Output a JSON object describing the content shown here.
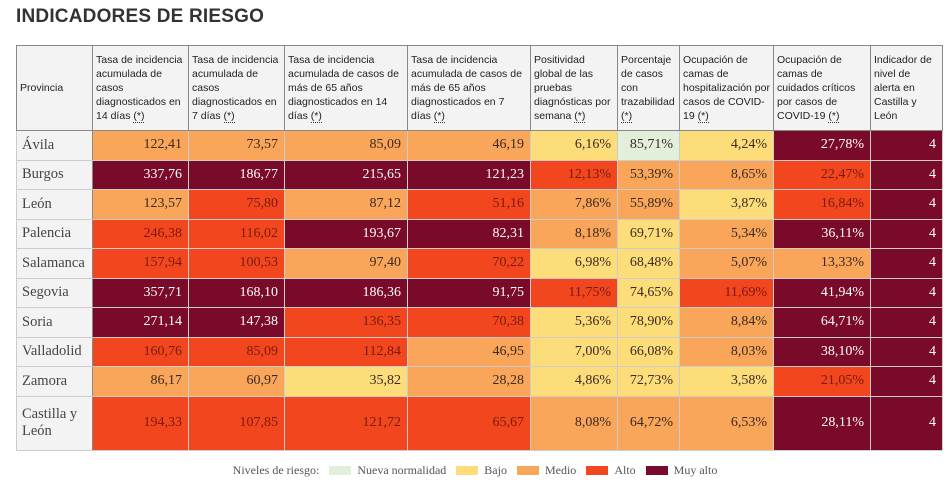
{
  "title": "INDICADORES DE RIESGO",
  "colors": {
    "N": "#e2efda",
    "B": "#fddd7a",
    "M": "#f9a65a",
    "A": "#f2461f",
    "X": "#7a0a2a"
  },
  "headers": [
    {
      "label": "Provincia",
      "note": ""
    },
    {
      "label": "Tasa de incidencia acumulada de casos diagnosticados en 14 días ",
      "note": "(*)"
    },
    {
      "label": "Tasa de incidencia acumulada de casos diagnosticados en 7 días ",
      "note": "(*)"
    },
    {
      "label": "Tasa de incidencia acumulada de casos de más de 65 años diagnosticados en 14 días ",
      "note": "(*)"
    },
    {
      "label": "Tasa de incidencia acumulada de casos de más de 65 años diagnosticados en 7 días ",
      "note": "(*)"
    },
    {
      "label": "Positividad global de las pruebas diagnósticas por semana ",
      "note": "(*)"
    },
    {
      "label": "Porcentaje de casos con trazabilidad ",
      "note": "(*)"
    },
    {
      "label": "Ocupación de camas de hospitalización por casos de COVID-19 ",
      "note": "(*)"
    },
    {
      "label": "Ocupación de camas de cuidados críticos por casos de COVID-19 ",
      "note": "(*)"
    },
    {
      "label": "Indicador de nivel de alerta en Castilla y León",
      "note": ""
    }
  ],
  "rows": [
    {
      "provincia": "Ávila",
      "values": [
        "122,41",
        "73,57",
        "85,09",
        "46,19",
        "6,16%",
        "85,71%",
        "4,24%",
        "27,78%",
        "4"
      ],
      "levels": "MMMMBNBXX"
    },
    {
      "provincia": "Burgos",
      "values": [
        "337,76",
        "186,77",
        "215,65",
        "121,23",
        "12,13%",
        "53,39%",
        "8,65%",
        "22,47%",
        "4"
      ],
      "levels": "XXXXAMMAX"
    },
    {
      "provincia": "León",
      "values": [
        "123,57",
        "75,80",
        "87,12",
        "51,16",
        "7,86%",
        "55,89%",
        "3,87%",
        "16,84%",
        "4"
      ],
      "levels": "MAMAMMBAX"
    },
    {
      "provincia": "Palencia",
      "values": [
        "246,38",
        "116,02",
        "193,67",
        "82,31",
        "8,18%",
        "69,71%",
        "5,34%",
        "36,11%",
        "4"
      ],
      "levels": "AAXXMBMXX"
    },
    {
      "provincia": "Salamanca",
      "values": [
        "157,94",
        "100,53",
        "97,40",
        "70,22",
        "6,98%",
        "68,48%",
        "5,07%",
        "13,33%",
        "4"
      ],
      "levels": "AAMABBMMX"
    },
    {
      "provincia": "Segovia",
      "values": [
        "357,71",
        "168,10",
        "186,36",
        "91,75",
        "11,75%",
        "74,65%",
        "11,69%",
        "41,94%",
        "4"
      ],
      "levels": "XXXXABAXX"
    },
    {
      "provincia": "Soria",
      "values": [
        "271,14",
        "147,38",
        "136,35",
        "70,38",
        "5,36%",
        "78,90%",
        "8,84%",
        "64,71%",
        "4"
      ],
      "levels": "XXAABBMXX"
    },
    {
      "provincia": "Valladolid",
      "values": [
        "160,76",
        "85,09",
        "112,84",
        "46,95",
        "7,00%",
        "66,08%",
        "8,03%",
        "38,10%",
        "4"
      ],
      "levels": "AAAMBBMXX"
    },
    {
      "provincia": "Zamora",
      "values": [
        "86,17",
        "60,97",
        "35,82",
        "28,28",
        "4,86%",
        "72,73%",
        "3,58%",
        "21,05%",
        "4"
      ],
      "levels": "MMBMBBBAX"
    },
    {
      "provincia": "Castilla y León",
      "values": [
        "194,33",
        "107,85",
        "121,72",
        "65,67",
        "8,08%",
        "64,72%",
        "6,53%",
        "28,11%",
        "4"
      ],
      "levels": "AAAAMMMXX"
    }
  ],
  "legend": {
    "label": "Niveles de riesgo:",
    "items": [
      {
        "key": "N",
        "label": "Nueva normalidad"
      },
      {
        "key": "B",
        "label": "Bajo"
      },
      {
        "key": "M",
        "label": "Medio"
      },
      {
        "key": "A",
        "label": "Alto"
      },
      {
        "key": "X",
        "label": "Muy alto"
      }
    ]
  }
}
